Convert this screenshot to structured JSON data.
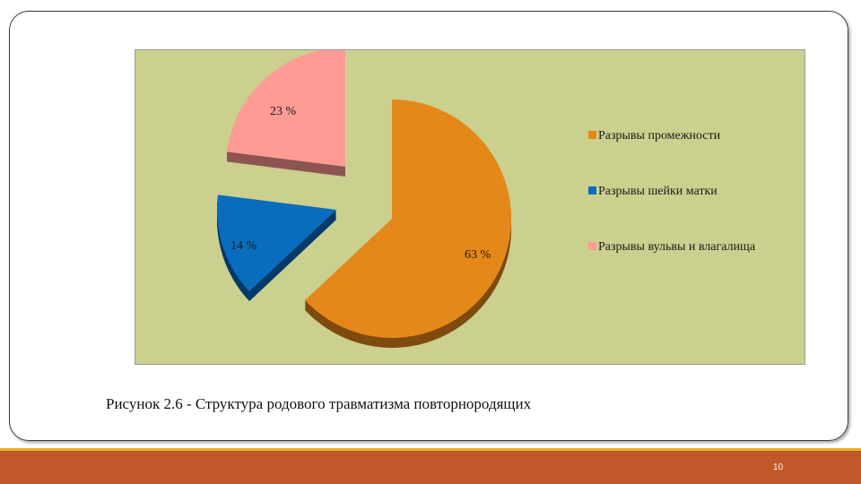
{
  "chart_data": {
    "type": "pie",
    "exploded": true,
    "three_d": true,
    "slices": [
      {
        "name": "Разрывы промежности",
        "value": 63,
        "label": "63 %",
        "color": "#e5881a"
      },
      {
        "name": "Разрывы шейки матки",
        "value": 14,
        "label": "14 %",
        "color": "#0a6cbd"
      },
      {
        "name": "Разрывы вульвы и влагалища",
        "value": 23,
        "label": "23 %",
        "color": "#ff9b95"
      }
    ],
    "legend_position": "right",
    "background": "#cbd08e"
  },
  "caption": "Рисунок 2.6 - Структура родового травматизма повторнородящих",
  "page_number": "10",
  "colors": {
    "footer": "#c0582a",
    "footer_line": "#e6b41e"
  }
}
